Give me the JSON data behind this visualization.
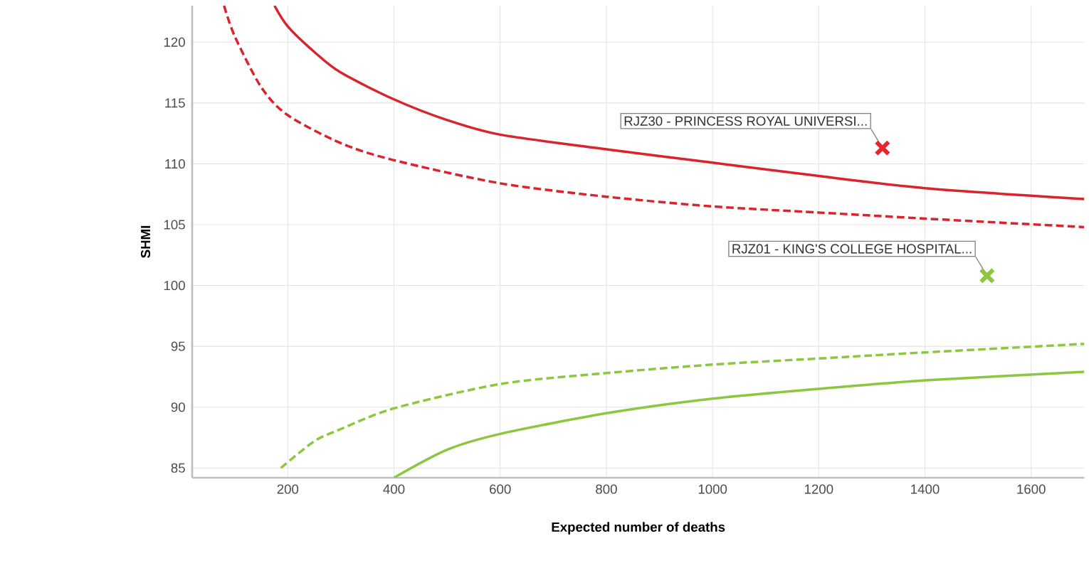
{
  "chart_data": {
    "type": "line",
    "xlabel": "Expected number of deaths",
    "ylabel": "SHMI",
    "xlim": [
      20,
      1700
    ],
    "ylim": [
      84.2,
      123
    ],
    "xticks": [
      200,
      400,
      600,
      800,
      1000,
      1200,
      1400,
      1600
    ],
    "yticks": [
      85,
      90,
      95,
      100,
      105,
      110,
      115,
      120
    ],
    "grid": true,
    "series": [
      {
        "color": "#d9232d",
        "line_style": "solid",
        "marker": "none",
        "x": [
          175,
          200,
          250,
          300,
          400,
          500,
          600,
          800,
          1000,
          1200,
          1400,
          1700
        ],
        "values": [
          123,
          121.3,
          119.2,
          117.5,
          115.3,
          113.6,
          112.4,
          111.2,
          110.1,
          109,
          108,
          107.1
        ]
      },
      {
        "color": "#d9232d",
        "line_style": "dashed",
        "marker": "none",
        "x": [
          80,
          100,
          150,
          200,
          300,
          400,
          600,
          800,
          1000,
          1200,
          1400,
          1700
        ],
        "values": [
          123,
          120.5,
          116.3,
          114,
          111.7,
          110.3,
          108.4,
          107.3,
          106.5,
          106,
          105.5,
          104.8
        ]
      },
      {
        "color": "#8dc63f",
        "line_style": "dashed",
        "marker": "none",
        "x": [
          187,
          250,
          300,
          400,
          600,
          800,
          1000,
          1200,
          1400,
          1700
        ],
        "values": [
          85,
          87.2,
          88.2,
          89.9,
          91.9,
          92.8,
          93.5,
          94,
          94.5,
          95.2
        ]
      },
      {
        "color": "#8dc63f",
        "line_style": "solid",
        "marker": "none",
        "x": [
          400,
          500,
          600,
          800,
          1000,
          1200,
          1400,
          1700
        ],
        "values": [
          84.2,
          86.5,
          87.8,
          89.5,
          90.7,
          91.5,
          92.2,
          92.9
        ]
      },
      {
        "type": "scatter",
        "marker": "cross",
        "x": [
          1320,
          1517
        ],
        "values": [
          111.3,
          100.8
        ],
        "colors": [
          "#e8242c",
          "#8dc63f"
        ]
      }
    ],
    "annotations": [
      {
        "text": "RJZ30 - PRINCESS ROYAL UNIVERSI...",
        "x": 1320,
        "y": 111.3
      },
      {
        "text": "RJZ01 - KING'S COLLEGE HOSPITAL...",
        "x": 1517,
        "y": 100.8
      }
    ]
  }
}
